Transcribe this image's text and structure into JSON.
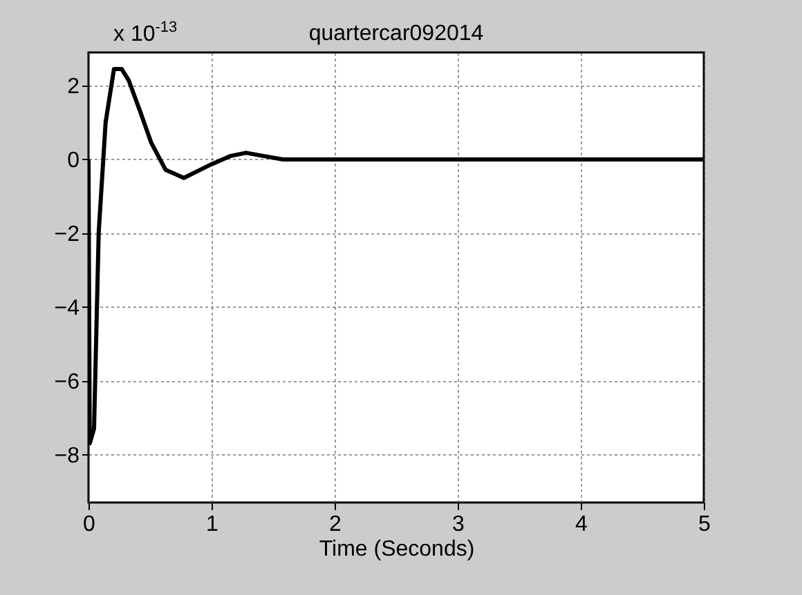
{
  "chart_data": {
    "type": "line",
    "title": "quartercar092014",
    "xlabel": "Time (Seconds)",
    "annotations": [
      "x 10$^{-13}$"
    ],
    "x": [
      0,
      0.01,
      0.045,
      0.083,
      0.139,
      0.207,
      0.27,
      0.326,
      0.42,
      0.51,
      0.626,
      0.775,
      1.0,
      1.15,
      1.28,
      1.41,
      1.58,
      2,
      3,
      4,
      5
    ],
    "series": [
      {
        "color": "#000000",
        "values": [
          0,
          -7.7,
          -7.3,
          -1.97,
          1.0,
          2.45,
          2.45,
          2.15,
          1.3,
          0.45,
          -0.28,
          -0.5,
          -0.13,
          0.09,
          0.18,
          0.1,
          0,
          0,
          0,
          0,
          0
        ]
      }
    ],
    "xlim": [
      0,
      5
    ],
    "xticks": [
      0,
      1,
      2,
      3,
      4,
      5
    ],
    "ylim": [
      -9.3,
      2.9
    ],
    "yticks": [
      -8,
      -6,
      -4,
      -2,
      0,
      2
    ],
    "grid": true,
    "marker": "none",
    "line_style": "solid"
  }
}
